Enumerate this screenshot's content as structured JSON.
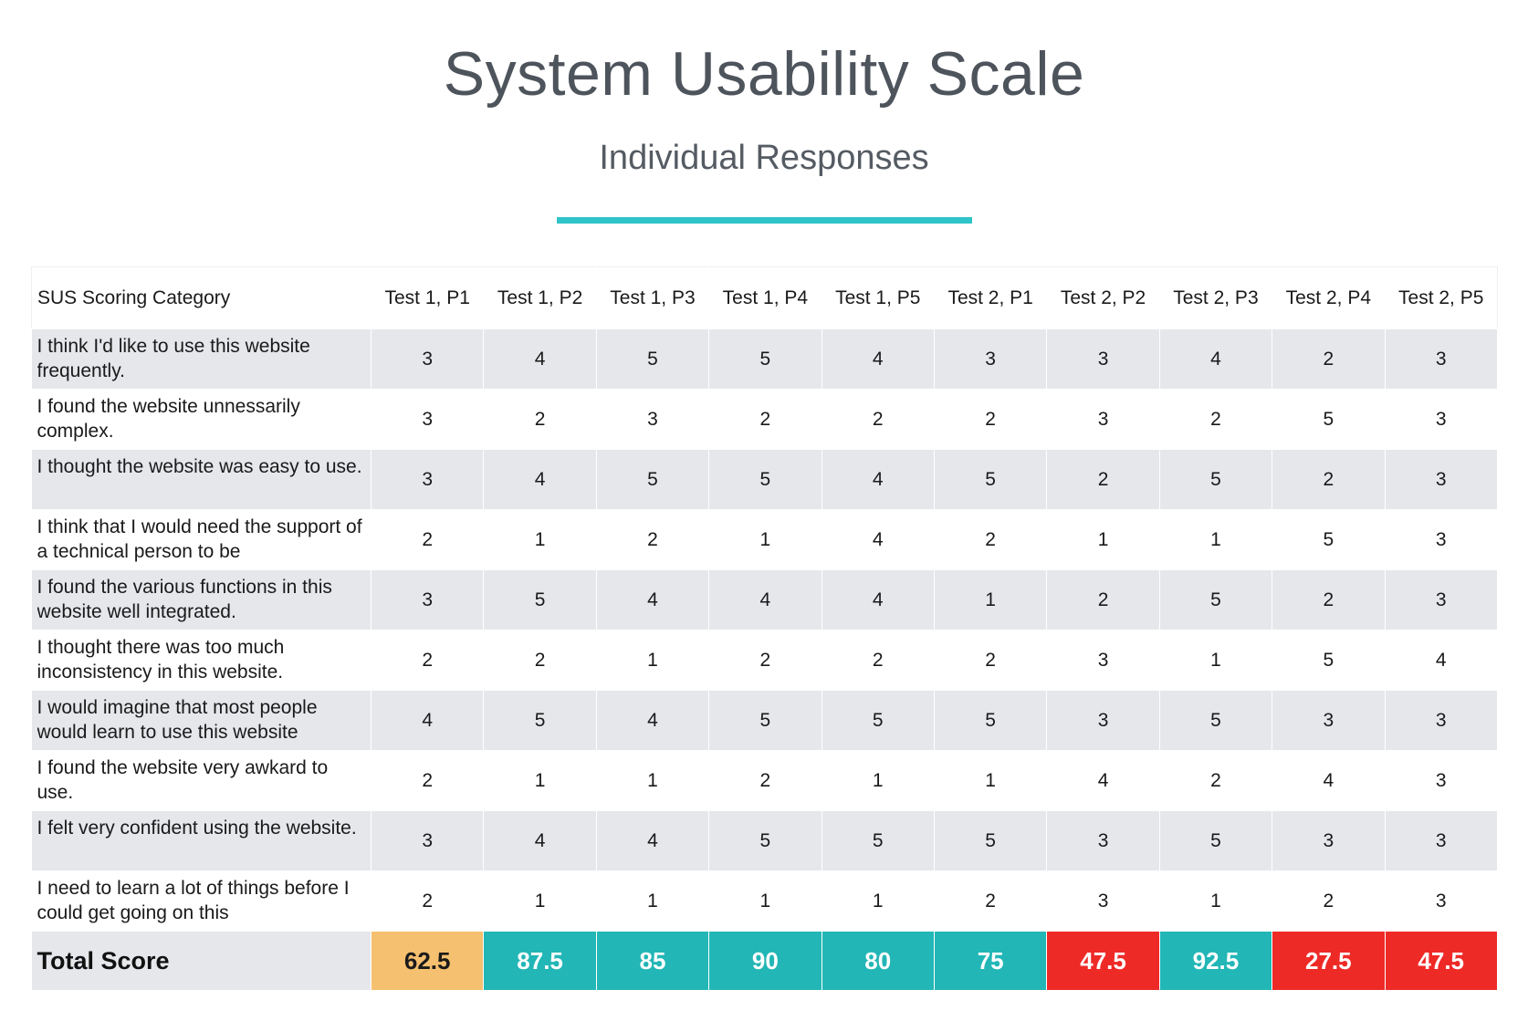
{
  "title": "System Usability Scale",
  "subtitle": "Individual Responses",
  "accent_color": "#2ec4c9",
  "chart_data": {
    "type": "table",
    "columns": [
      "SUS Scoring Category",
      "Test 1, P1",
      "Test 1, P2",
      "Test 1, P3",
      "Test 1, P4",
      "Test 1, P5",
      "Test 2, P1",
      "Test 2, P2",
      "Test 2, P3",
      "Test 2, P4",
      "Test 2, P5"
    ],
    "rows": [
      {
        "category": "I think I'd like to use this website frequently.",
        "values": [
          3,
          4,
          5,
          5,
          4,
          3,
          3,
          4,
          2,
          3
        ]
      },
      {
        "category": "I found the website unnessarily complex.",
        "values": [
          3,
          2,
          3,
          2,
          2,
          2,
          3,
          2,
          5,
          3
        ]
      },
      {
        "category": "I thought the website was easy to use.",
        "values": [
          3,
          4,
          5,
          5,
          4,
          5,
          2,
          5,
          2,
          3
        ]
      },
      {
        "category": "I think that I would need the support of a technical person to be",
        "values": [
          2,
          1,
          2,
          1,
          4,
          2,
          1,
          1,
          5,
          3
        ]
      },
      {
        "category": "I found the various functions in this website well integrated.",
        "values": [
          3,
          5,
          4,
          4,
          4,
          1,
          2,
          5,
          2,
          3
        ]
      },
      {
        "category": "I thought there was too much inconsistency in this website.",
        "values": [
          2,
          2,
          1,
          2,
          2,
          2,
          3,
          1,
          5,
          4
        ]
      },
      {
        "category": "I would imagine that most people would learn to use this website",
        "values": [
          4,
          5,
          4,
          5,
          5,
          5,
          3,
          5,
          3,
          3
        ]
      },
      {
        "category": "I found the website very awkard to use.",
        "values": [
          2,
          1,
          1,
          2,
          1,
          1,
          4,
          2,
          4,
          3
        ]
      },
      {
        "category": "I felt very confident using the website.",
        "values": [
          3,
          4,
          4,
          5,
          5,
          5,
          3,
          5,
          3,
          3
        ]
      },
      {
        "category": "I need to learn a lot of things before I could get going on this",
        "values": [
          2,
          1,
          1,
          1,
          1,
          2,
          3,
          1,
          2,
          3
        ]
      }
    ],
    "total": {
      "label": "Total Score",
      "values": [
        "62.5",
        "87.5",
        "85",
        "90",
        "80",
        "75",
        "47.5",
        "92.5",
        "27.5",
        "47.5"
      ],
      "colors": [
        "#f5c06f",
        "#22b6b6",
        "#22b6b6",
        "#22b6b6",
        "#22b6b6",
        "#22b6b6",
        "#ee2a27",
        "#22b6b6",
        "#ee2a27",
        "#ee2a27"
      ]
    }
  }
}
